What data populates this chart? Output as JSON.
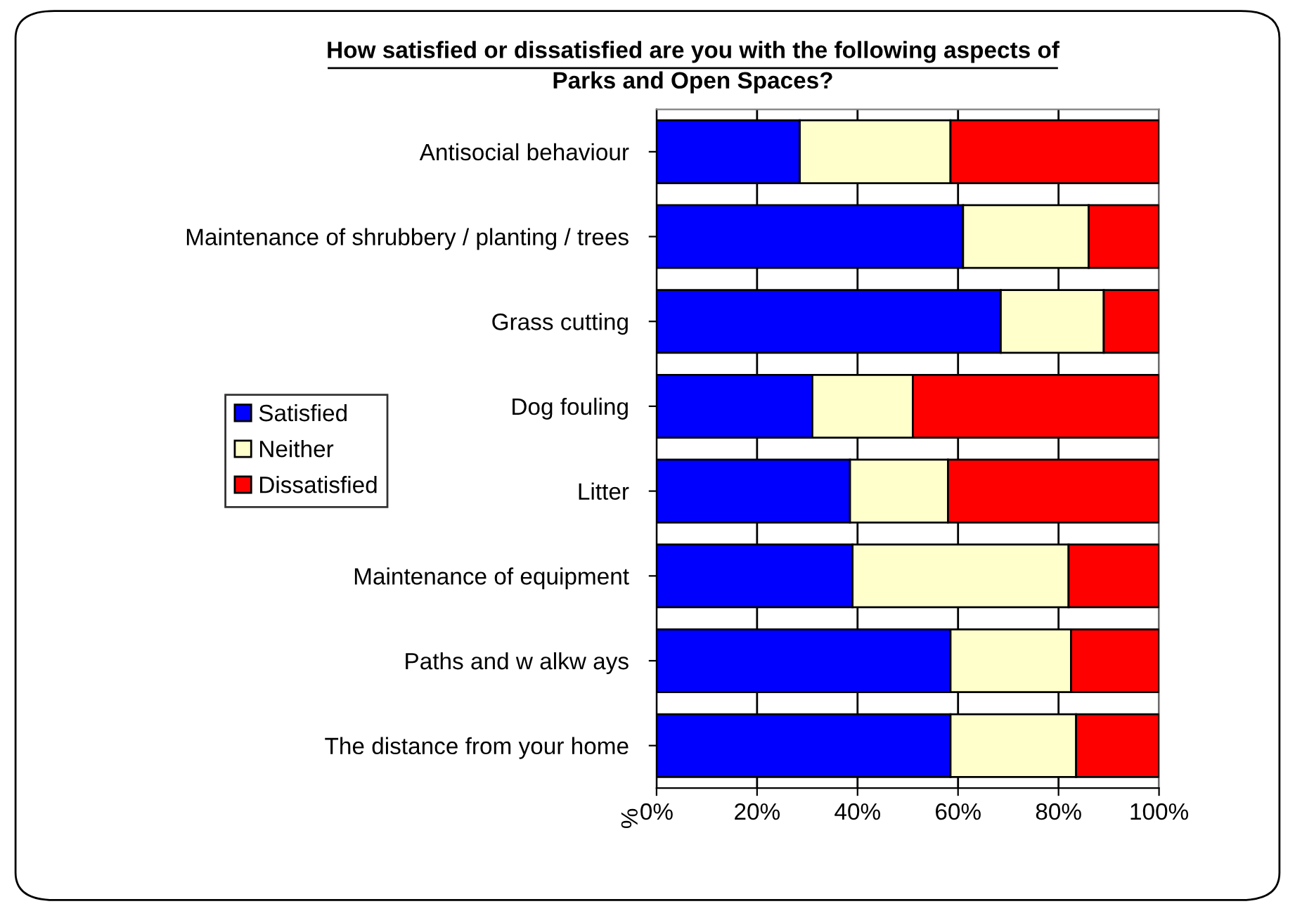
{
  "chart_data": {
    "type": "bar",
    "orientation": "horizontal",
    "stacked": true,
    "title": "How satisfied or dissatisfied are you with the following aspects of\nParks and Open Spaces?",
    "ylabel": "%",
    "categories": [
      "Antisocial behaviour",
      "Maintenance of shrubbery / planting / trees",
      "Grass cutting",
      "Dog fouling",
      "Litter",
      "Maintenance of equipment",
      "Paths and w alkw ays",
      "The distance from your home"
    ],
    "series": [
      {
        "name": "Satisfied",
        "color": "#0000ff",
        "values": [
          28.5,
          61,
          68.5,
          31,
          38.5,
          39,
          58.5,
          58.5
        ]
      },
      {
        "name": "Neither",
        "color": "#ffffcc",
        "values": [
          30,
          25,
          20.5,
          20,
          19.5,
          43,
          24,
          25
        ]
      },
      {
        "name": "Dissatisfied",
        "color": "#ff0000",
        "values": [
          41.5,
          14,
          11,
          49,
          42,
          18,
          17.5,
          16.5
        ]
      }
    ],
    "xlim": [
      0,
      100
    ],
    "xticks": [
      {
        "value": 0,
        "label": "0%"
      },
      {
        "value": 20,
        "label": "20%"
      },
      {
        "value": 40,
        "label": "40%"
      },
      {
        "value": 60,
        "label": "60%"
      },
      {
        "value": 80,
        "label": "80%"
      },
      {
        "value": 100,
        "label": "100%"
      }
    ],
    "grid": "x",
    "legend": "left"
  }
}
